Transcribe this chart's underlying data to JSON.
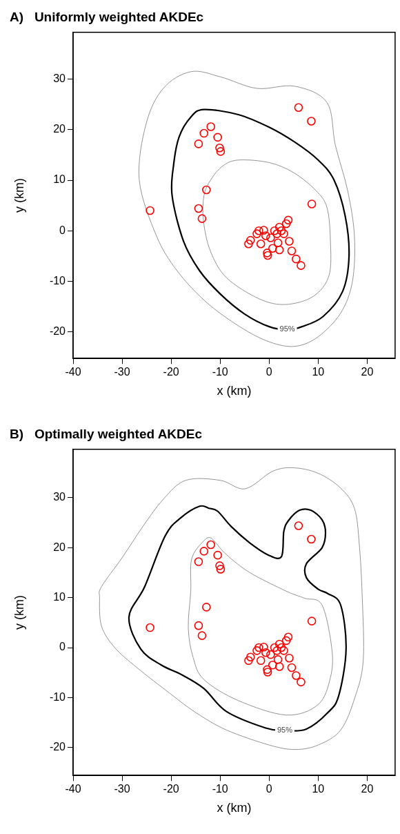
{
  "chart_data": [
    {
      "type": "scatter",
      "title": "A)   Uniformly weighted AKDEc",
      "xlabel": "x (km)",
      "ylabel": "y (km)",
      "xlim": [
        -40,
        25.7
      ],
      "ylim": [
        -25.3,
        39.3
      ],
      "xticks": [
        -40,
        -30,
        -20,
        -10,
        0,
        10,
        20
      ],
      "yticks": [
        -20,
        -10,
        0,
        10,
        20,
        30
      ],
      "grid": false,
      "legend": false,
      "annotations": [
        "95%"
      ],
      "series": [
        {
          "type": "scatter",
          "color": "#ff0000",
          "marker": "circle",
          "x": [
            6,
            8.6,
            -11.9,
            -13.3,
            -10.5,
            -14.4,
            -10.1,
            -9.9,
            -12.8,
            8.7,
            -24.3,
            -14.4,
            -13.7,
            3.9,
            3.5,
            2.1,
            2.5,
            1.6,
            -1.1,
            -2.1,
            -2.5,
            -0.7,
            -3.8,
            -4.2,
            -1.7,
            0.3,
            1.8,
            4.1,
            2.1,
            0.7,
            -0.4,
            -0.3,
            4.6,
            5.5,
            6.5,
            3,
            1.1
          ],
          "values": [
            24.4,
            21.7,
            20.6,
            19.3,
            18.5,
            17.2,
            16.4,
            15.7,
            8.1,
            5.3,
            4,
            4.4,
            2.4,
            2.1,
            1.4,
            0.7,
            0,
            -0.6,
            0.1,
            0,
            -0.6,
            -1,
            -1.9,
            -2.6,
            -2.6,
            -1.4,
            -2.4,
            -2.1,
            -3.8,
            -3.5,
            -4.4,
            -4.9,
            -4,
            -5.6,
            -6.9,
            -0.6,
            0
          ]
        }
      ]
    },
    {
      "type": "scatter",
      "title": "B)   Optimally weighted AKDEc",
      "xlabel": "x (km)",
      "ylabel": "y (km)",
      "xlim": [
        -40,
        25.7
      ],
      "ylim": [
        -25.6,
        39.7
      ],
      "xticks": [
        -40,
        -30,
        -20,
        -10,
        0,
        10,
        20
      ],
      "yticks": [
        -20,
        -10,
        0,
        10,
        20,
        30
      ],
      "grid": false,
      "legend": false,
      "annotations": [
        "95%"
      ],
      "series": [
        {
          "type": "scatter",
          "color": "#ff0000",
          "marker": "circle",
          "x": [
            6,
            8.6,
            -11.9,
            -13.3,
            -10.5,
            -14.4,
            -10.1,
            -9.9,
            -12.8,
            8.7,
            -24.3,
            -14.4,
            -13.7,
            3.9,
            3.5,
            2.1,
            2.5,
            1.6,
            -1.1,
            -2.1,
            -2.5,
            -0.7,
            -3.8,
            -4.2,
            -1.7,
            0.3,
            1.8,
            4.1,
            2.1,
            0.7,
            -0.4,
            -0.3,
            4.6,
            5.5,
            6.5,
            3,
            1.1
          ],
          "values": [
            24.4,
            21.7,
            20.6,
            19.3,
            18.5,
            17.2,
            16.4,
            15.7,
            8.1,
            5.3,
            4,
            4.4,
            2.4,
            2.1,
            1.4,
            0.7,
            0,
            -0.6,
            0.1,
            0,
            -0.6,
            -1,
            -1.9,
            -2.6,
            -2.6,
            -1.4,
            -2.4,
            -2.1,
            -3.8,
            -3.5,
            -4.4,
            -4.9,
            -4,
            -5.6,
            -6.9,
            -0.6,
            0
          ]
        }
      ]
    }
  ]
}
